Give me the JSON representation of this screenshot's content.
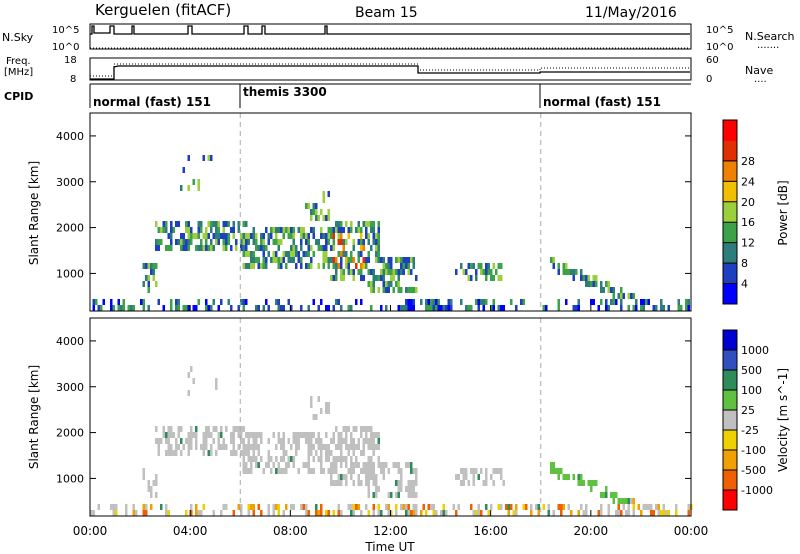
{
  "header": {
    "station": "Kerguelen (fitACF)",
    "beam": "Beam 15",
    "date": "11/May/2016"
  },
  "top_panels": {
    "nsky": {
      "label": "N.Sky",
      "ticks": [
        "10^5",
        "10^0"
      ],
      "right_label": "N.Search",
      "right_ticks": [
        "10^5",
        "10^0"
      ],
      "right_legend": "......."
    },
    "freq": {
      "label_line1": "Freq.",
      "label_line2": "[MHz]",
      "ticks": [
        "18",
        "8"
      ],
      "right_label": "Nave",
      "right_ticks": [
        "60",
        "0"
      ],
      "right_legend": "...."
    },
    "cpid": {
      "label": "CPID",
      "segments": [
        {
          "label": "normal (fast) 151",
          "start_hour": 0
        },
        {
          "label": "themis 3300",
          "start_hour": 6
        },
        {
          "label": "normal (fast) 151",
          "start_hour": 18
        }
      ]
    }
  },
  "chart_data": [
    {
      "type": "heatmap",
      "name": "power",
      "ylabel": "Slant Range [km]",
      "ylim": [
        180,
        4500
      ],
      "yticks": [
        1000,
        2000,
        3000,
        4000
      ],
      "xlim": [
        0,
        24
      ],
      "colorbar": {
        "label": "Power [dB]",
        "ticks": [
          "4",
          "8",
          "12",
          "16",
          "20",
          "24",
          "28"
        ],
        "colors": [
          "#0000ff",
          "#1e3fbf",
          "#2e7d7d",
          "#3ca24a",
          "#9ccf3c",
          "#f0c000",
          "#f08000",
          "#e03000",
          "#ff0000"
        ]
      },
      "background_color": "#ffffff",
      "dashed_verticals_hours": [
        6,
        18
      ]
    },
    {
      "type": "heatmap",
      "name": "velocity",
      "ylabel": "Slant Range [km]",
      "ylim": [
        180,
        4500
      ],
      "yticks": [
        1000,
        2000,
        3000,
        4000
      ],
      "xlim": [
        0,
        24
      ],
      "xlabel": "Time UT",
      "xticks": [
        "00:00",
        "04:00",
        "08:00",
        "12:00",
        "16:00",
        "20:00",
        "00:00"
      ],
      "colorbar": {
        "label": "Velocity [m s^-1]",
        "ticks": [
          "1000",
          "500",
          "100",
          "25",
          "-25",
          "-100",
          "-500",
          "-1000"
        ],
        "colors": [
          "#0000d0",
          "#3050c0",
          "#2e8c5a",
          "#60c040",
          "#c0c0c0",
          "#f0d000",
          "#f0a000",
          "#f06000",
          "#ff0000"
        ]
      },
      "dashed_verticals_hours": [
        6,
        18
      ]
    }
  ]
}
